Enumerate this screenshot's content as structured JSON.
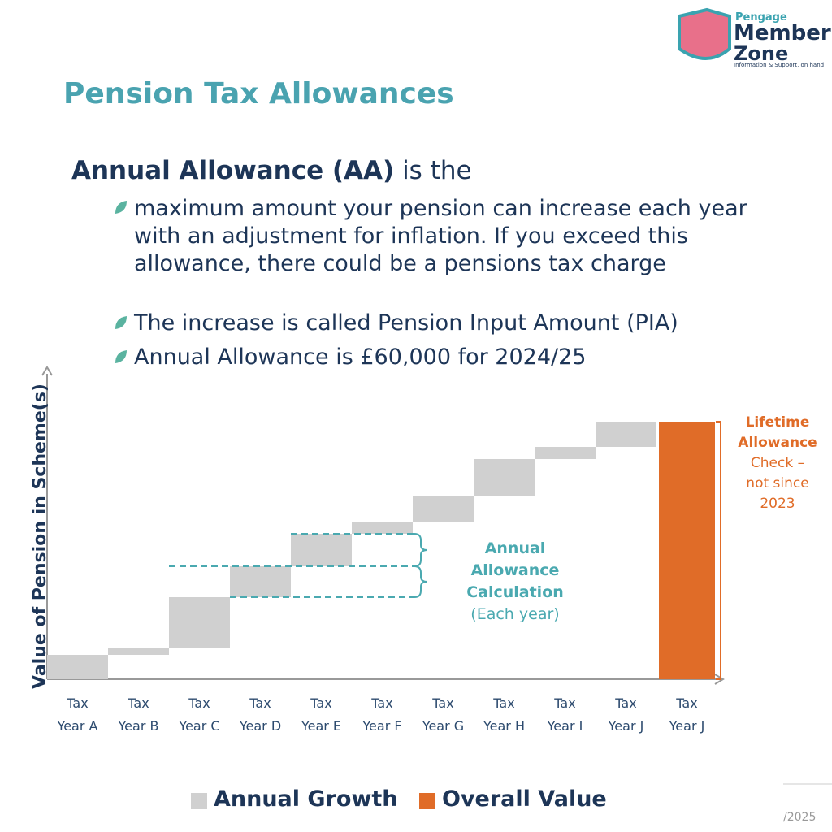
{
  "logo": {
    "brand": "Pengage",
    "line1": "Member",
    "line2": "Zone",
    "tagline": "Information & Support, on hand"
  },
  "title": "Pension Tax Allowances",
  "heading": {
    "bold": "Annual Allowance (AA)",
    "rest": " is the"
  },
  "bullets": [
    "maximum amount your pension can increase each year with an adjustment for inflation.  If you exceed this allowance, there could be a pensions tax charge",
    "The increase is called Pension Input Amount (PIA)",
    "Annual Allowance is £60,000 for 2024/25"
  ],
  "footer": "/2025",
  "chart_data": {
    "type": "waterfall",
    "y_label": "Value of Pension in Scheme(s)",
    "categories": [
      "Tax\nYear A",
      "Tax\nYear B",
      "Tax\nYear C",
      "Tax\nYear D",
      "Tax\nYear E",
      "Tax\nYear F",
      "Tax\nYear G",
      "Tax\nYear H",
      "Tax\nYear I",
      "Tax\nYear J",
      "Tax\nYear J"
    ],
    "series": [
      {
        "name": "Annual Growth",
        "color": "#d0d0d0",
        "values": [
          30,
          9,
          62,
          38,
          40,
          14,
          32,
          46,
          15,
          31,
          null
        ]
      },
      {
        "name": "Overall Value",
        "color": "#e06c28",
        "values": [
          null,
          null,
          null,
          null,
          null,
          null,
          null,
          null,
          null,
          null,
          317
        ]
      }
    ],
    "ylim": [
      0,
      380
    ],
    "annotations": {
      "aa": {
        "lines": [
          "Annual",
          "Allowance",
          "Calculation"
        ],
        "note": "(Each year)"
      },
      "lta": {
        "lines": [
          "Lifetime",
          "Allowance"
        ],
        "note": [
          "Check –",
          "not since",
          "2023"
        ]
      }
    }
  }
}
